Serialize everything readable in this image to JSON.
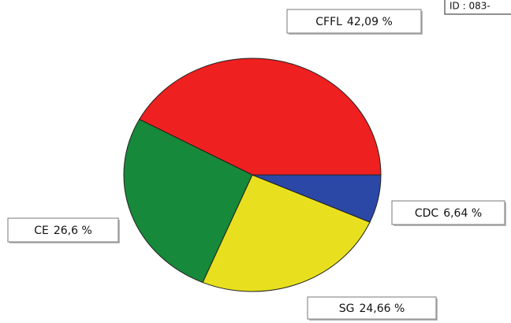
{
  "id_text": "ID : 083-",
  "chart_data": {
    "type": "pie",
    "categories": [
      "CFFL",
      "CE",
      "SG",
      "CDC"
    ],
    "values": [
      42.09,
      26.6,
      24.66,
      6.64
    ],
    "value_labels": [
      "42,09 %",
      "26,6 %",
      "24,66 %",
      "6,64 %"
    ],
    "colors": [
      "#ee2020",
      "#17893a",
      "#e8e01e",
      "#2b48a6"
    ]
  }
}
